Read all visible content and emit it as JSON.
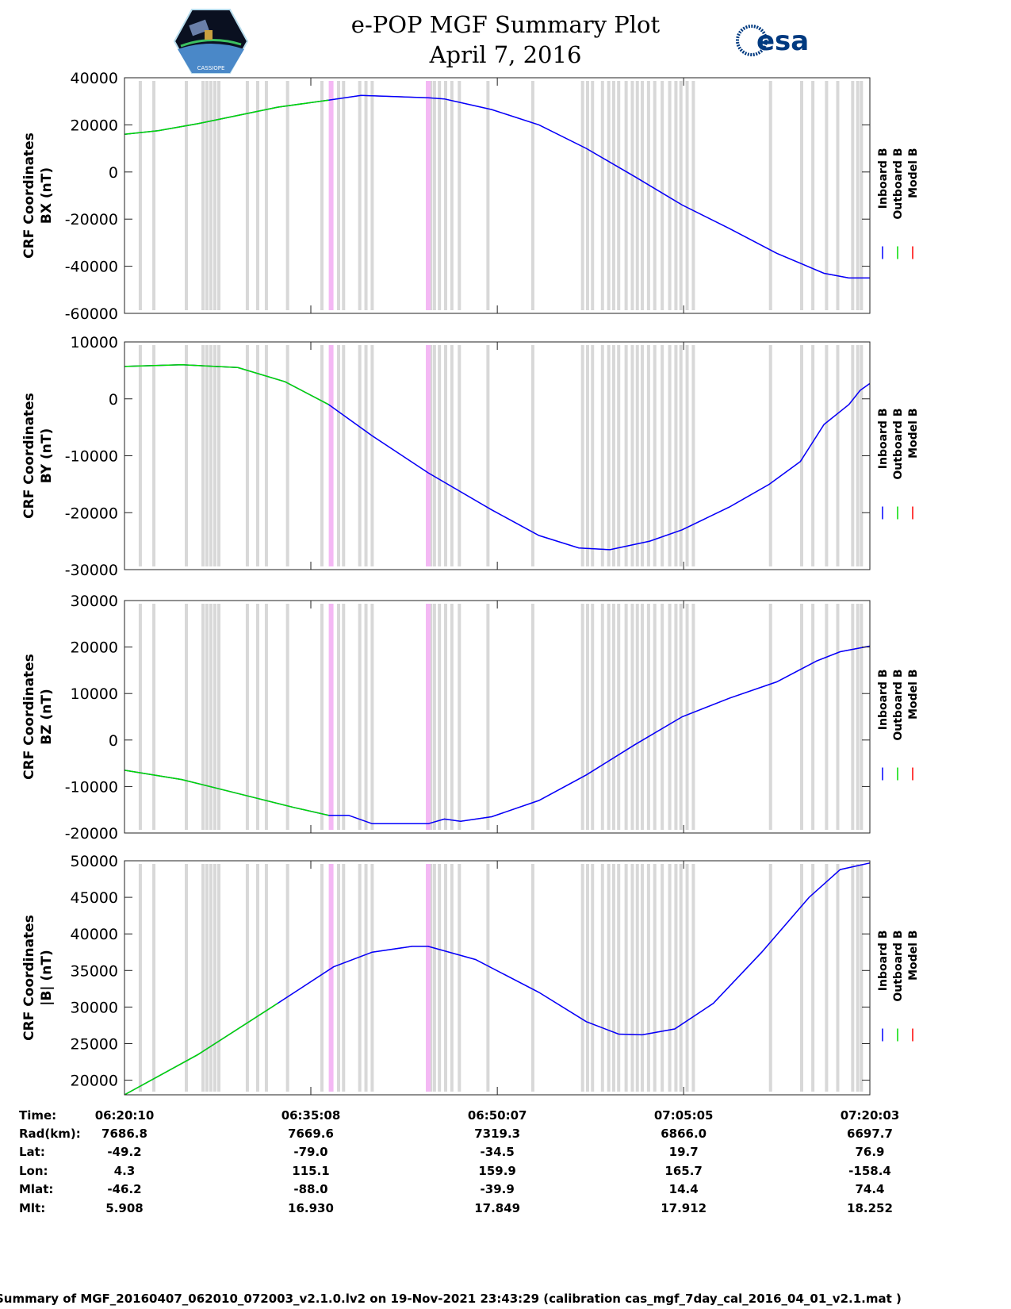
{
  "header": {
    "title": "e-POP MGF Summary Plot",
    "subtitle": "April 7, 2016",
    "logo_left": "CASSIOPE",
    "logo_right": "esa"
  },
  "chart_data": {
    "type": "line",
    "x_unit": "minutes after 06:20:10",
    "x_range": [
      0,
      59.88
    ],
    "x_ticks": [
      0,
      14.97,
      29.95,
      44.92,
      59.88
    ],
    "colors": {
      "inboard": "#0000ff",
      "outboard": "#00dd00",
      "model": "#ff0000",
      "gap": "#d8d8d8",
      "pink": "#f4b8f4"
    },
    "legend": [
      "Inboard B",
      "Outboard B",
      "Model B"
    ],
    "gaps_gray": [
      1.27,
      2.36,
      4.97,
      6.31,
      6.62,
      6.94,
      7.26,
      7.58,
      9.87,
      10.7,
      11.4,
      13.1,
      15.86,
      17.2,
      17.6,
      18.9,
      19.4,
      19.9,
      24.6,
      24.9,
      25.3,
      25.8,
      26.3,
      26.9,
      29.2,
      32.8,
      36.8,
      37.2,
      37.6,
      38.4,
      38.9,
      39.3,
      39.7,
      40.3,
      40.8,
      41.2,
      41.6,
      42.1,
      42.6,
      43.2,
      43.8,
      44.3,
      44.7,
      45.2,
      45.7,
      51.9,
      54.4,
      55.3,
      56.4,
      57.3,
      58.5,
      58.9,
      59.2
    ],
    "gaps_pink": [
      16.6,
      24.4
    ],
    "green_end": 16.5,
    "panels": [
      {
        "ylabel": "CRF Coordinates",
        "ylabel2": "BX (nT)",
        "ylim": [
          -60000,
          40000
        ],
        "yticks": [
          -60000,
          -40000,
          -20000,
          0,
          20000,
          40000
        ],
        "data": [
          [
            0,
            16000
          ],
          [
            2.7,
            17500
          ],
          [
            5.9,
            20500
          ],
          [
            9.1,
            24000
          ],
          [
            12.3,
            27500
          ],
          [
            16.4,
            30500
          ],
          [
            19,
            32500
          ],
          [
            24.4,
            31500
          ],
          [
            25.7,
            31000
          ],
          [
            29.5,
            26500
          ],
          [
            33.3,
            20000
          ],
          [
            37.1,
            10000
          ],
          [
            41,
            -2000
          ],
          [
            44.8,
            -14000
          ],
          [
            48.6,
            -24000
          ],
          [
            52.4,
            -34500
          ],
          [
            56.2,
            -43000
          ],
          [
            58.2,
            -45000
          ],
          [
            59.88,
            -45000
          ]
        ]
      },
      {
        "ylabel": "CRF Coordinates",
        "ylabel2": "BY (nT)",
        "ylim": [
          -30000,
          10000
        ],
        "yticks": [
          -30000,
          -20000,
          -10000,
          0,
          10000
        ],
        "data": [
          [
            0,
            5700
          ],
          [
            4.6,
            6000
          ],
          [
            9.1,
            5500
          ],
          [
            12.9,
            3000
          ],
          [
            16.4,
            -1000
          ],
          [
            19.9,
            -6500
          ],
          [
            24.4,
            -13000
          ],
          [
            29.5,
            -19500
          ],
          [
            33.3,
            -24000
          ],
          [
            36.5,
            -26200
          ],
          [
            39,
            -26500
          ],
          [
            42.2,
            -25000
          ],
          [
            44.8,
            -23000
          ],
          [
            48.6,
            -19000
          ],
          [
            51.8,
            -15000
          ],
          [
            54.3,
            -11000
          ],
          [
            56.2,
            -4500
          ],
          [
            58.2,
            -1000
          ],
          [
            59.1,
            1500
          ],
          [
            59.88,
            2700
          ]
        ]
      },
      {
        "ylabel": "CRF Coordinates",
        "ylabel2": "BZ (nT)",
        "ylim": [
          -20000,
          30000
        ],
        "yticks": [
          -20000,
          -10000,
          0,
          10000,
          20000,
          30000
        ],
        "data": [
          [
            0,
            -6500
          ],
          [
            4.6,
            -8500
          ],
          [
            9.1,
            -11500
          ],
          [
            13.6,
            -14500
          ],
          [
            16.4,
            -16200
          ],
          [
            18,
            -16200
          ],
          [
            19.9,
            -18000
          ],
          [
            24.4,
            -18000
          ],
          [
            25.7,
            -17000
          ],
          [
            27,
            -17500
          ],
          [
            29.5,
            -16500
          ],
          [
            33.3,
            -13000
          ],
          [
            37.1,
            -7500
          ],
          [
            41,
            -1000
          ],
          [
            44.8,
            5000
          ],
          [
            48.6,
            9000
          ],
          [
            52.4,
            12500
          ],
          [
            55.6,
            17000
          ],
          [
            57.5,
            19000
          ],
          [
            59.88,
            20200
          ]
        ]
      },
      {
        "ylabel": "CRF Coordinates",
        "ylabel2": "|B| (nT)",
        "ylim": [
          18000,
          50000
        ],
        "yticks": [
          20000,
          25000,
          30000,
          35000,
          40000,
          45000,
          50000
        ],
        "data": [
          [
            0,
            18000
          ],
          [
            5.9,
            23500
          ],
          [
            12.3,
            30500
          ],
          [
            16.8,
            35500
          ],
          [
            19.9,
            37500
          ],
          [
            23.1,
            38300
          ],
          [
            24.4,
            38300
          ],
          [
            28.2,
            36500
          ],
          [
            33.3,
            32000
          ],
          [
            37.1,
            28000
          ],
          [
            39.7,
            26300
          ],
          [
            41.6,
            26200
          ],
          [
            44.2,
            27000
          ],
          [
            47.3,
            30500
          ],
          [
            51.2,
            37500
          ],
          [
            55,
            45000
          ],
          [
            57.5,
            48800
          ],
          [
            59.88,
            49700
          ]
        ]
      }
    ]
  },
  "table": {
    "labels": [
      "Time:",
      "Rad(km):",
      "Lat:",
      "Lon:",
      "Mlat:",
      "Mlt:"
    ],
    "columns": [
      [
        "06:20:10",
        "7686.8",
        "-49.2",
        "4.3",
        "-46.2",
        "5.908"
      ],
      [
        "06:35:08",
        "7669.6",
        "-79.0",
        "115.1",
        "-88.0",
        "16.930"
      ],
      [
        "06:50:07",
        "7319.3",
        "-34.5",
        "159.9",
        "-39.9",
        "17.849"
      ],
      [
        "07:05:05",
        "6866.0",
        "19.7",
        "165.7",
        "14.4",
        "17.912"
      ],
      [
        "07:20:03",
        "6697.7",
        "76.9",
        "-158.4",
        "74.4",
        "18.252"
      ]
    ]
  },
  "footer": "Summary of MGF_20160407_062010_072003_v2.1.0.lv2 on 19-Nov-2021 23:43:29 (calibration cas_mgf_7day_cal_2016_04_01_v2.1.mat )"
}
